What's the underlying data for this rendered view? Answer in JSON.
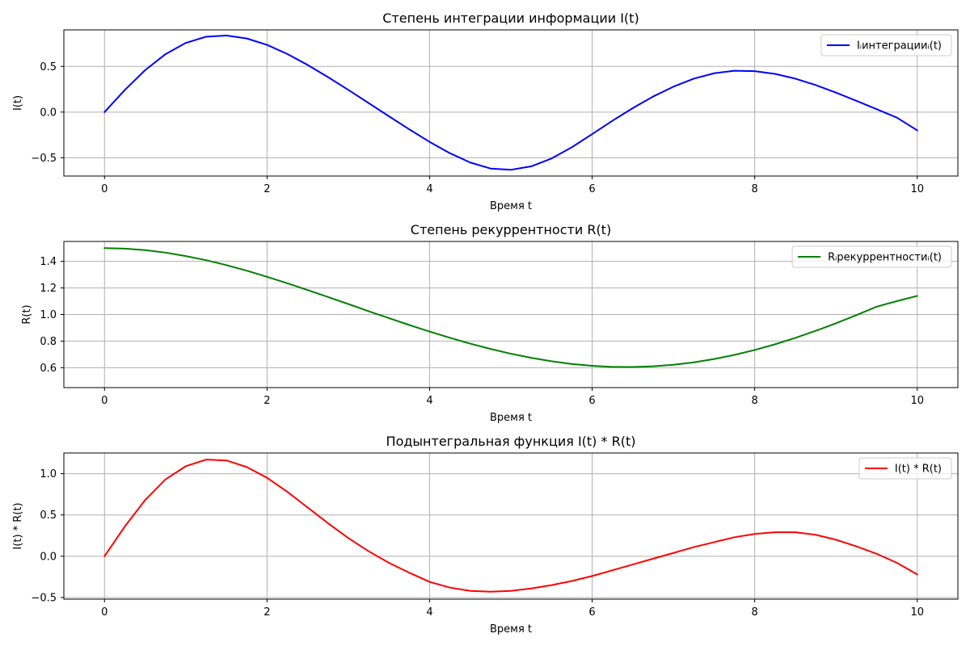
{
  "chart_data": [
    {
      "type": "line",
      "title": "Степень интеграции информации I(t)",
      "xlabel": "Время t",
      "ylabel": "I(t)",
      "xlim": [
        -0.5,
        10.5
      ],
      "ylim": [
        -0.7,
        0.9
      ],
      "xticks": [
        0,
        2,
        4,
        6,
        8,
        10
      ],
      "xtick_labels": [
        "0",
        "2",
        "4",
        "6",
        "8",
        "10"
      ],
      "yticks": [
        -0.5,
        0.0,
        0.5
      ],
      "ytick_labels": [
        "−0.5",
        "0.0",
        "0.5"
      ],
      "grid": true,
      "legend": "top-right",
      "series": [
        {
          "name": "Iᵢинтеграцииᵢ(t)",
          "color": "#0000ff",
          "x": [
            0,
            0.25,
            0.5,
            0.75,
            1.0,
            1.25,
            1.5,
            1.75,
            2.0,
            2.25,
            2.5,
            2.75,
            3.0,
            3.25,
            3.5,
            3.75,
            4.0,
            4.25,
            4.5,
            4.75,
            5.0,
            5.25,
            5.5,
            5.75,
            6.0,
            6.25,
            6.5,
            6.75,
            7.0,
            7.25,
            7.5,
            7.75,
            8.0,
            8.25,
            8.5,
            8.75,
            9.0,
            9.25,
            9.5,
            9.75,
            10.0
          ],
          "y": [
            0.0,
            0.242,
            0.459,
            0.634,
            0.757,
            0.825,
            0.838,
            0.806,
            0.736,
            0.636,
            0.516,
            0.383,
            0.243,
            0.099,
            -0.046,
            -0.189,
            -0.326,
            -0.45,
            -0.552,
            -0.618,
            -0.632,
            -0.594,
            -0.508,
            -0.385,
            -0.241,
            -0.095,
            0.044,
            0.17,
            0.278,
            0.366,
            0.425,
            0.452,
            0.448,
            0.418,
            0.366,
            0.296,
            0.213,
            0.124,
            0.032,
            -0.061,
            -0.2
          ]
        }
      ]
    },
    {
      "type": "line",
      "title": "Степень рекуррентности R(t)",
      "xlabel": "Время t",
      "ylabel": "R(t)",
      "xlim": [
        -0.5,
        10.5
      ],
      "ylim": [
        0.45,
        1.55
      ],
      "xticks": [
        0,
        2,
        4,
        6,
        8,
        10
      ],
      "xtick_labels": [
        "0",
        "2",
        "4",
        "6",
        "8",
        "10"
      ],
      "yticks": [
        0.6,
        0.8,
        1.0,
        1.2,
        1.4
      ],
      "ytick_labels": [
        "0.6",
        "0.8",
        "1.0",
        "1.2",
        "1.4"
      ],
      "grid": true,
      "legend": "top-right",
      "series": [
        {
          "name": "Rᵢрекуррентностиᵢ(t)",
          "color": "#008000",
          "x": [
            0,
            0.25,
            0.5,
            0.75,
            1.0,
            1.25,
            1.5,
            1.75,
            2.0,
            2.25,
            2.5,
            2.75,
            3.0,
            3.25,
            3.5,
            3.75,
            4.0,
            4.25,
            4.5,
            4.75,
            5.0,
            5.25,
            5.5,
            5.75,
            6.0,
            6.25,
            6.5,
            6.75,
            7.0,
            7.25,
            7.5,
            7.75,
            8.0,
            8.25,
            8.5,
            8.75,
            9.0,
            9.25,
            9.5,
            9.75,
            10.0
          ],
          "y": [
            1.5,
            1.496,
            1.485,
            1.466,
            1.44,
            1.409,
            1.372,
            1.33,
            1.284,
            1.235,
            1.184,
            1.132,
            1.079,
            1.025,
            0.973,
            0.921,
            0.872,
            0.825,
            0.781,
            0.741,
            0.705,
            0.674,
            0.648,
            0.628,
            0.614,
            0.606,
            0.605,
            0.61,
            0.622,
            0.64,
            0.665,
            0.696,
            0.733,
            0.776,
            0.824,
            0.877,
            0.934,
            0.995,
            1.059,
            1.101,
            1.14
          ]
        }
      ]
    },
    {
      "type": "line",
      "title": "Подынтегральная функция I(t) * R(t)",
      "xlabel": "Время t",
      "ylabel": "I(t) * R(t)",
      "xlim": [
        -0.5,
        10.5
      ],
      "ylim": [
        -0.52,
        1.25
      ],
      "xticks": [
        0,
        2,
        4,
        6,
        8,
        10
      ],
      "xtick_labels": [
        "0",
        "2",
        "4",
        "6",
        "8",
        "10"
      ],
      "yticks": [
        -0.5,
        0.0,
        0.5,
        1.0
      ],
      "ytick_labels": [
        "−0.5",
        "0.0",
        "0.5",
        "1.0"
      ],
      "grid": true,
      "legend": "top-right",
      "series": [
        {
          "name": "I(t) * R(t)",
          "color": "#ff0000",
          "x": [
            0,
            0.25,
            0.5,
            0.75,
            1.0,
            1.25,
            1.5,
            1.75,
            2.0,
            2.25,
            2.5,
            2.75,
            3.0,
            3.25,
            3.5,
            3.75,
            4.0,
            4.25,
            4.5,
            4.75,
            5.0,
            5.25,
            5.5,
            5.75,
            6.0,
            6.25,
            6.5,
            6.75,
            7.0,
            7.25,
            7.5,
            7.75,
            8.0,
            8.25,
            8.5,
            8.75,
            9.0,
            9.25,
            9.5,
            9.75,
            10.0
          ],
          "y": [
            0.0,
            0.36,
            0.68,
            0.93,
            1.09,
            1.17,
            1.16,
            1.08,
            0.95,
            0.78,
            0.59,
            0.4,
            0.22,
            0.06,
            -0.08,
            -0.2,
            -0.31,
            -0.38,
            -0.42,
            -0.43,
            -0.42,
            -0.39,
            -0.35,
            -0.3,
            -0.24,
            -0.17,
            -0.1,
            -0.03,
            0.04,
            0.11,
            0.17,
            0.23,
            0.27,
            0.29,
            0.29,
            0.26,
            0.2,
            0.12,
            0.03,
            -0.08,
            -0.22
          ]
        }
      ]
    }
  ]
}
